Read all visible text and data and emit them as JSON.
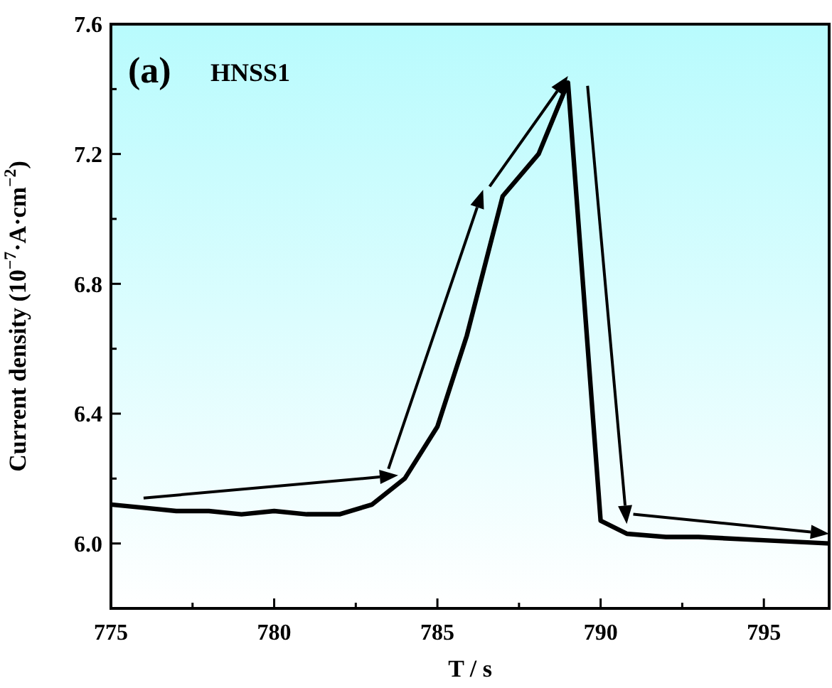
{
  "chart_data": {
    "type": "line",
    "xlabel": "T / s",
    "ylabel": "Current density (10$^{−7}$·A·cm$^{−2}$)",
    "annotations": [
      "(a)",
      "HNSS1"
    ],
    "series": [
      {
        "color": "#000000",
        "x": [
          775,
          776,
          777,
          778,
          779,
          780,
          781,
          782,
          783,
          784,
          785,
          785.9,
          787,
          788.1,
          789,
          790,
          790.8,
          792,
          793,
          795,
          797
        ],
        "values": [
          6.12,
          6.11,
          6.1,
          6.1,
          6.09,
          6.1,
          6.09,
          6.09,
          6.12,
          6.2,
          6.36,
          6.64,
          7.07,
          7.2,
          7.42,
          6.07,
          6.03,
          6.02,
          6.02,
          6.01,
          6.0
        ]
      }
    ],
    "xlim": [
      775,
      797
    ],
    "ylim": [
      5.8,
      7.6
    ],
    "xticks": [
      775,
      {
        "value": 777.5,
        "label": null
      },
      780,
      {
        "value": 782.5,
        "label": null
      },
      785,
      {
        "value": 787.5,
        "label": null
      },
      790,
      {
        "value": 792.5,
        "label": null
      },
      795
    ],
    "yticks": [
      {
        "value": 5.8,
        "label": null
      },
      {
        "value": 6,
        "label": "6.0"
      },
      {
        "value": 6.2,
        "label": null
      },
      {
        "value": 6.4,
        "label": "6.4"
      },
      {
        "value": 6.6,
        "label": null
      },
      {
        "value": 6.8,
        "label": "6.8"
      },
      {
        "value": 7,
        "label": null
      },
      {
        "value": 7.2,
        "label": "7.2"
      },
      {
        "value": 7.4,
        "label": null
      },
      {
        "value": 7.6,
        "label": "7.6"
      }
    ],
    "grid": false,
    "marker": "none",
    "line_style": "solid"
  }
}
